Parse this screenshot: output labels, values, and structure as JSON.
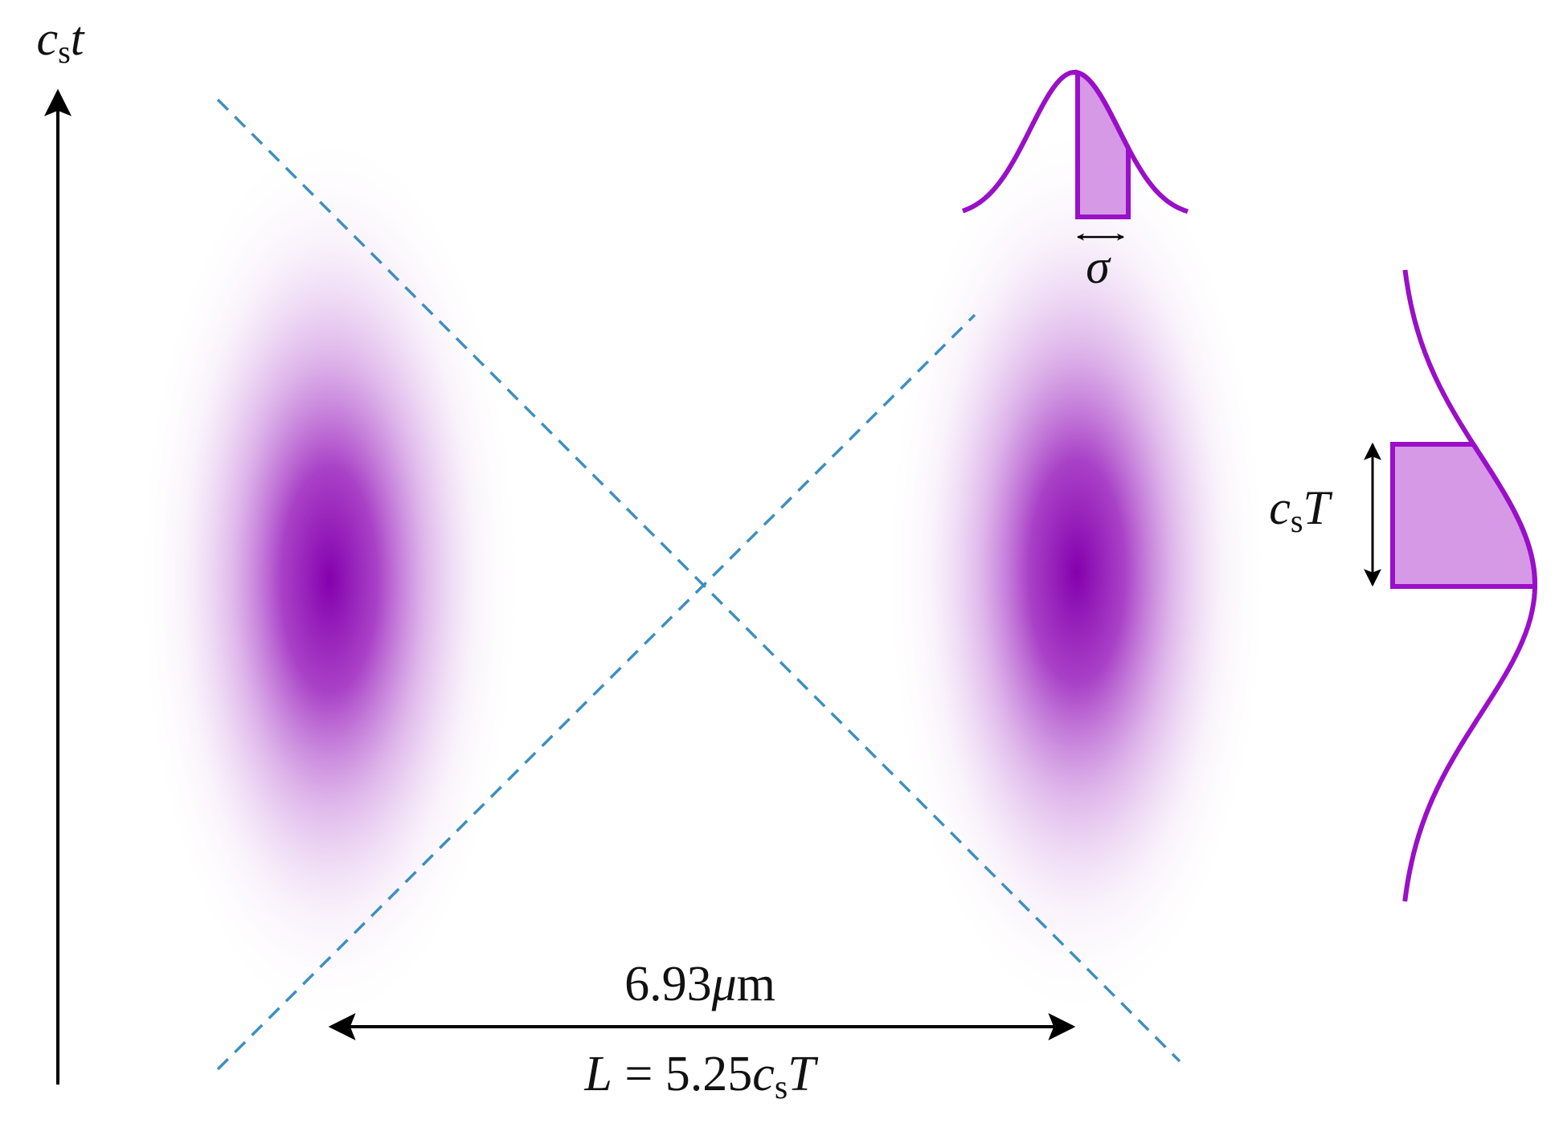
{
  "axis_label": {
    "symbol": "c",
    "subscript": "s",
    "variable": "t"
  },
  "width_label": "σ",
  "duration_label": {
    "symbol": "c",
    "subscript": "s",
    "variable": "T"
  },
  "distance": {
    "value": "6.93",
    "unit_prefix": "μ",
    "unit": "m",
    "equation": {
      "lhs": "L",
      "equals": "=",
      "coefficient": "5.25",
      "symbol": "c",
      "subscript": "s",
      "variable": "T"
    }
  }
}
